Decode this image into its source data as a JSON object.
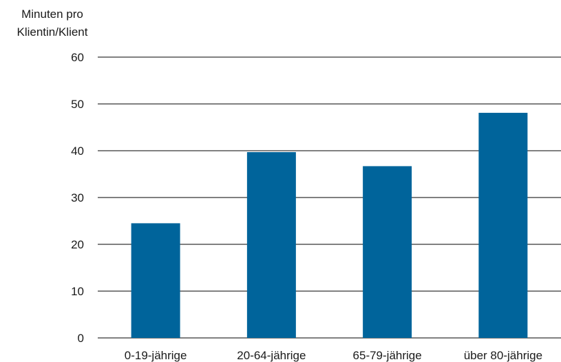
{
  "chart_data": {
    "type": "bar",
    "title": "",
    "xlabel": "",
    "ylabel": "Minuten pro Klientin/Klient",
    "ylabel_lines": [
      "Minuten pro",
      "Klientin/Klient"
    ],
    "categories": [
      "0-19-jährige",
      "20-64-jährige",
      "65-79-jährige",
      "über 80-jährige"
    ],
    "values": [
      24.5,
      39.7,
      36.7,
      48.1
    ],
    "ylim": [
      0,
      60
    ],
    "yticks": [
      0,
      10,
      20,
      30,
      40,
      50,
      60
    ],
    "grid": true,
    "legend": "none",
    "bar_color": "#00649b",
    "grid_color": "#000000"
  }
}
